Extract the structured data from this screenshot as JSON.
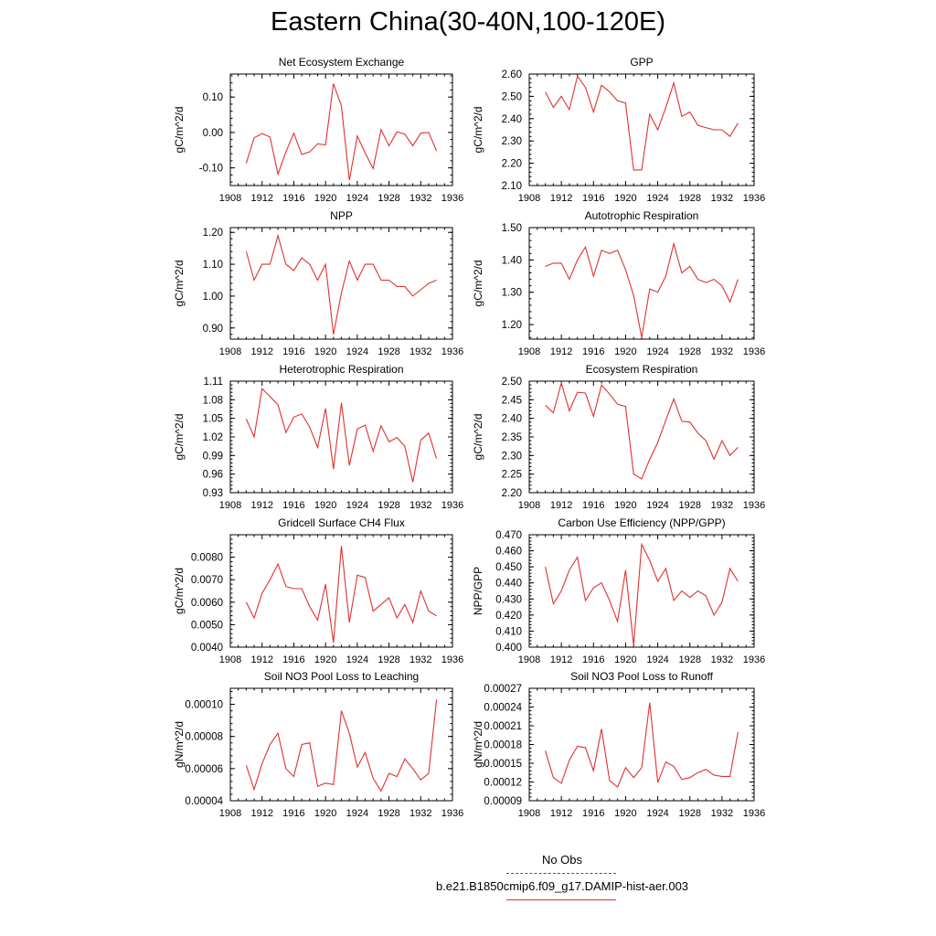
{
  "page": {
    "title": "Eastern China(30-40N,100-120E)"
  },
  "legend": {
    "items": [
      {
        "label": "No Obs",
        "color": "#4444cc",
        "style": "dashed"
      },
      {
        "label": "b.e21.B1850cmip6.f09_g17.DAMIP-hist-aer.003",
        "color": "#e03030",
        "style": "solid"
      }
    ]
  },
  "chart_data": [
    {
      "type": "line",
      "title": "Net Ecosystem Exchange",
      "ylabel": "gC/m^2/d",
      "xlim": [
        1908,
        1936
      ],
      "xticks": [
        "1908",
        "1912",
        "1916",
        "1920",
        "1924",
        "1928",
        "1932",
        "1936"
      ],
      "ylim": [
        -0.15,
        0.165
      ],
      "yticks": [
        "-0.10",
        "0.00",
        "0.10"
      ],
      "ytick_values": [
        -0.1,
        0.0,
        0.1
      ],
      "x": [
        1910,
        1911,
        1912,
        1913,
        1914,
        1915,
        1916,
        1917,
        1918,
        1919,
        1920,
        1921,
        1922,
        1923,
        1924,
        1925,
        1926,
        1927,
        1928,
        1929,
        1930,
        1931,
        1932,
        1933,
        1934
      ],
      "series": [
        {
          "color": "#e03030",
          "values": [
            -0.087,
            -0.015,
            -0.003,
            -0.013,
            -0.118,
            -0.055,
            -0.002,
            -0.062,
            -0.055,
            -0.032,
            -0.035,
            0.138,
            0.075,
            -0.135,
            -0.01,
            -0.058,
            -0.102,
            0.008,
            -0.038,
            0.002,
            -0.005,
            -0.038,
            -0.002,
            0,
            -0.052
          ]
        }
      ]
    },
    {
      "type": "line",
      "title": "GPP",
      "ylabel": "gC/m^2/d",
      "xlim": [
        1908,
        1936
      ],
      "xticks": [
        "1908",
        "1912",
        "1916",
        "1920",
        "1924",
        "1928",
        "1932",
        "1936"
      ],
      "ylim": [
        2.1,
        2.6
      ],
      "yticks": [
        "2.10",
        "2.20",
        "2.30",
        "2.40",
        "2.50",
        "2.60"
      ],
      "ytick_values": [
        2.1,
        2.2,
        2.3,
        2.4,
        2.5,
        2.6
      ],
      "x": [
        1910,
        1911,
        1912,
        1913,
        1914,
        1915,
        1916,
        1917,
        1918,
        1919,
        1920,
        1921,
        1922,
        1923,
        1924,
        1925,
        1926,
        1927,
        1928,
        1929,
        1930,
        1931,
        1932,
        1933,
        1934
      ],
      "series": [
        {
          "color": "#e03030",
          "values": [
            2.52,
            2.45,
            2.5,
            2.44,
            2.59,
            2.54,
            2.43,
            2.55,
            2.52,
            2.48,
            2.47,
            2.17,
            2.17,
            2.42,
            2.35,
            2.45,
            2.56,
            2.41,
            2.43,
            2.37,
            2.36,
            2.35,
            2.35,
            2.32,
            2.38
          ]
        }
      ]
    },
    {
      "type": "line",
      "title": "NPP",
      "ylabel": "gC/m^2/d",
      "xlim": [
        1908,
        1936
      ],
      "xticks": [
        "1908",
        "1912",
        "1916",
        "1920",
        "1924",
        "1928",
        "1932",
        "1936"
      ],
      "ylim": [
        0.865,
        1.215
      ],
      "yticks": [
        "0.90",
        "1.00",
        "1.10",
        "1.20"
      ],
      "ytick_values": [
        0.9,
        1.0,
        1.1,
        1.2
      ],
      "x": [
        1910,
        1911,
        1912,
        1913,
        1914,
        1915,
        1916,
        1917,
        1918,
        1919,
        1920,
        1921,
        1922,
        1923,
        1924,
        1925,
        1926,
        1927,
        1928,
        1929,
        1930,
        1931,
        1932,
        1933,
        1934
      ],
      "series": [
        {
          "color": "#e03030",
          "values": [
            1.14,
            1.05,
            1.1,
            1.1,
            1.19,
            1.1,
            1.08,
            1.12,
            1.1,
            1.05,
            1.1,
            0.88,
            1.01,
            1.11,
            1.05,
            1.1,
            1.1,
            1.05,
            1.05,
            1.03,
            1.03,
            1.0,
            1.02,
            1.04,
            1.05
          ]
        }
      ]
    },
    {
      "type": "line",
      "title": "Autotrophic Respiration",
      "ylabel": "gC/m^2/d",
      "xlim": [
        1908,
        1936
      ],
      "xticks": [
        "1908",
        "1912",
        "1916",
        "1920",
        "1924",
        "1928",
        "1932",
        "1936"
      ],
      "ylim": [
        1.155,
        1.5
      ],
      "yticks": [
        "1.20",
        "1.30",
        "1.40",
        "1.50"
      ],
      "ytick_values": [
        1.2,
        1.3,
        1.4,
        1.5
      ],
      "x": [
        1910,
        1911,
        1912,
        1913,
        1914,
        1915,
        1916,
        1917,
        1918,
        1919,
        1920,
        1921,
        1922,
        1923,
        1924,
        1925,
        1926,
        1927,
        1928,
        1929,
        1930,
        1931,
        1932,
        1933,
        1934
      ],
      "series": [
        {
          "color": "#e03030",
          "values": [
            1.38,
            1.39,
            1.39,
            1.34,
            1.4,
            1.44,
            1.35,
            1.43,
            1.42,
            1.43,
            1.37,
            1.29,
            1.16,
            1.31,
            1.3,
            1.35,
            1.45,
            1.36,
            1.38,
            1.34,
            1.33,
            1.34,
            1.32,
            1.27,
            1.34
          ]
        }
      ]
    },
    {
      "type": "line",
      "title": "Heterotrophic Respiration",
      "ylabel": "gC/m^2/d",
      "xlim": [
        1908,
        1936
      ],
      "xticks": [
        "1908",
        "1912",
        "1916",
        "1920",
        "1924",
        "1928",
        "1932",
        "1936"
      ],
      "ylim": [
        0.93,
        1.11
      ],
      "yticks": [
        "0.93",
        "0.96",
        "0.99",
        "1.02",
        "1.05",
        "1.08",
        "1.11"
      ],
      "ytick_values": [
        0.93,
        0.96,
        0.99,
        1.02,
        1.05,
        1.08,
        1.11
      ],
      "x": [
        1910,
        1911,
        1912,
        1913,
        1914,
        1915,
        1916,
        1917,
        1918,
        1919,
        1920,
        1921,
        1922,
        1923,
        1924,
        1925,
        1926,
        1927,
        1928,
        1929,
        1930,
        1931,
        1932,
        1933,
        1934
      ],
      "series": [
        {
          "color": "#e03030",
          "values": [
            1.049,
            1.02,
            1.098,
            1.085,
            1.072,
            1.027,
            1.052,
            1.057,
            1.036,
            1.003,
            1.066,
            0.968,
            1.075,
            0.974,
            1.033,
            1.039,
            0.997,
            1.038,
            1.012,
            1.019,
            1.005,
            0.947,
            1.015,
            1.026,
            0.985
          ]
        }
      ]
    },
    {
      "type": "line",
      "title": "Ecosystem Respiration",
      "ylabel": "gC/m^2/d",
      "xlim": [
        1908,
        1936
      ],
      "xticks": [
        "1908",
        "1912",
        "1916",
        "1920",
        "1924",
        "1928",
        "1932",
        "1936"
      ],
      "ylim": [
        2.2,
        2.5
      ],
      "yticks": [
        "2.20",
        "2.25",
        "2.30",
        "2.35",
        "2.40",
        "2.45",
        "2.50"
      ],
      "ytick_values": [
        2.2,
        2.25,
        2.3,
        2.35,
        2.4,
        2.45,
        2.5
      ],
      "x": [
        1910,
        1911,
        1912,
        1913,
        1914,
        1915,
        1916,
        1917,
        1918,
        1919,
        1920,
        1921,
        1922,
        1923,
        1924,
        1925,
        1926,
        1927,
        1928,
        1929,
        1930,
        1931,
        1932,
        1933,
        1934
      ],
      "series": [
        {
          "color": "#e03030",
          "values": [
            2.435,
            2.415,
            2.495,
            2.42,
            2.47,
            2.468,
            2.405,
            2.49,
            2.465,
            2.438,
            2.432,
            2.25,
            2.237,
            2.29,
            2.335,
            2.395,
            2.452,
            2.392,
            2.39,
            2.36,
            2.34,
            2.29,
            2.34,
            2.3,
            2.322
          ]
        }
      ]
    },
    {
      "type": "line",
      "title": "Gridcell Surface CH4 Flux",
      "ylabel": "gC/m^2/d",
      "xlim": [
        1908,
        1936
      ],
      "xticks": [
        "1908",
        "1912",
        "1916",
        "1920",
        "1924",
        "1928",
        "1932",
        "1936"
      ],
      "ylim": [
        0.004,
        0.009
      ],
      "yticks": [
        "0.0040",
        "0.0050",
        "0.0060",
        "0.0070",
        "0.0080"
      ],
      "ytick_values": [
        0.004,
        0.005,
        0.006,
        0.007,
        0.008
      ],
      "x": [
        1910,
        1911,
        1912,
        1913,
        1914,
        1915,
        1916,
        1917,
        1918,
        1919,
        1920,
        1921,
        1922,
        1923,
        1924,
        1925,
        1926,
        1927,
        1928,
        1929,
        1930,
        1931,
        1932,
        1933,
        1934
      ],
      "series": [
        {
          "color": "#e03030",
          "values": [
            0.006,
            0.0053,
            0.0064,
            0.007,
            0.0077,
            0.0067,
            0.0066,
            0.0066,
            0.0058,
            0.0052,
            0.0068,
            0.0042,
            0.0085,
            0.0051,
            0.0072,
            0.0071,
            0.0056,
            0.0059,
            0.0062,
            0.0053,
            0.0059,
            0.0051,
            0.0065,
            0.0056,
            0.0054
          ]
        }
      ]
    },
    {
      "type": "line",
      "title": "Carbon Use Efficiency (NPP/GPP)",
      "ylabel": "NPP/GPP",
      "xlim": [
        1908,
        1936
      ],
      "xticks": [
        "1908",
        "1912",
        "1916",
        "1920",
        "1924",
        "1928",
        "1932",
        "1936"
      ],
      "ylim": [
        0.4,
        0.47
      ],
      "yticks": [
        "0.400",
        "0.410",
        "0.420",
        "0.430",
        "0.440",
        "0.450",
        "0.460",
        "0.470"
      ],
      "ytick_values": [
        0.4,
        0.41,
        0.42,
        0.43,
        0.44,
        0.45,
        0.46,
        0.47
      ],
      "x": [
        1910,
        1911,
        1912,
        1913,
        1914,
        1915,
        1916,
        1917,
        1918,
        1919,
        1920,
        1921,
        1922,
        1923,
        1924,
        1925,
        1926,
        1927,
        1928,
        1929,
        1930,
        1931,
        1932,
        1933,
        1934
      ],
      "series": [
        {
          "color": "#e03030",
          "values": [
            0.45,
            0.427,
            0.435,
            0.448,
            0.456,
            0.429,
            0.437,
            0.44,
            0.429,
            0.416,
            0.448,
            0.401,
            0.464,
            0.454,
            0.441,
            0.449,
            0.429,
            0.435,
            0.431,
            0.435,
            0.432,
            0.42,
            0.428,
            0.449,
            0.441
          ]
        }
      ]
    },
    {
      "type": "line",
      "title": "Soil NO3 Pool Loss to Leaching",
      "ylabel": "gN/m^2/d",
      "xlim": [
        1908,
        1936
      ],
      "xticks": [
        "1908",
        "1912",
        "1916",
        "1920",
        "1924",
        "1928",
        "1932",
        "1936"
      ],
      "ylim": [
        4e-05,
        0.00011
      ],
      "yticks": [
        "0.00004",
        "0.00006",
        "0.00008",
        "0.00010"
      ],
      "ytick_values": [
        4e-05,
        6e-05,
        8e-05,
        0.0001
      ],
      "x": [
        1910,
        1911,
        1912,
        1913,
        1914,
        1915,
        1916,
        1917,
        1918,
        1919,
        1920,
        1921,
        1922,
        1923,
        1924,
        1925,
        1926,
        1927,
        1928,
        1929,
        1930,
        1931,
        1932,
        1933,
        1934
      ],
      "series": [
        {
          "color": "#e03030",
          "values": [
            6.2e-05,
            4.7e-05,
            6.3e-05,
            7.5e-05,
            8.2e-05,
            6e-05,
            5.5e-05,
            7.5e-05,
            7.6e-05,
            4.9e-05,
            5.1e-05,
            5e-05,
            9.6e-05,
            8.2e-05,
            6.1e-05,
            7e-05,
            5.4e-05,
            4.6e-05,
            5.7e-05,
            5.5e-05,
            6.6e-05,
            6e-05,
            5.3e-05,
            5.7e-05,
            0.000103
          ]
        }
      ]
    },
    {
      "type": "line",
      "title": "Soil NO3 Pool Loss to Runoff",
      "ylabel": "gN/m^2/d",
      "xlim": [
        1908,
        1936
      ],
      "xticks": [
        "1908",
        "1912",
        "1916",
        "1920",
        "1924",
        "1928",
        "1932",
        "1936"
      ],
      "ylim": [
        9e-05,
        0.00027
      ],
      "yticks": [
        "0.00009",
        "0.00012",
        "0.00015",
        "0.00018",
        "0.00021",
        "0.00024",
        "0.00027"
      ],
      "ytick_values": [
        9e-05,
        0.00012,
        0.00015,
        0.00018,
        0.00021,
        0.00024,
        0.00027
      ],
      "x": [
        1910,
        1911,
        1912,
        1913,
        1914,
        1915,
        1916,
        1917,
        1918,
        1919,
        1920,
        1921,
        1922,
        1923,
        1924,
        1925,
        1926,
        1927,
        1928,
        1929,
        1930,
        1931,
        1932,
        1933,
        1934
      ],
      "series": [
        {
          "color": "#e03030",
          "values": [
            0.00017,
            0.000127,
            0.000118,
            0.000155,
            0.000177,
            0.000175,
            0.000138,
            0.000205,
            0.000122,
            0.000112,
            0.000143,
            0.000127,
            0.000143,
            0.000247,
            0.000119,
            0.000152,
            0.000145,
            0.000124,
            0.000127,
            0.000135,
            0.00014,
            0.000131,
            0.000129,
            0.000129,
            0.0002
          ]
        }
      ]
    }
  ]
}
